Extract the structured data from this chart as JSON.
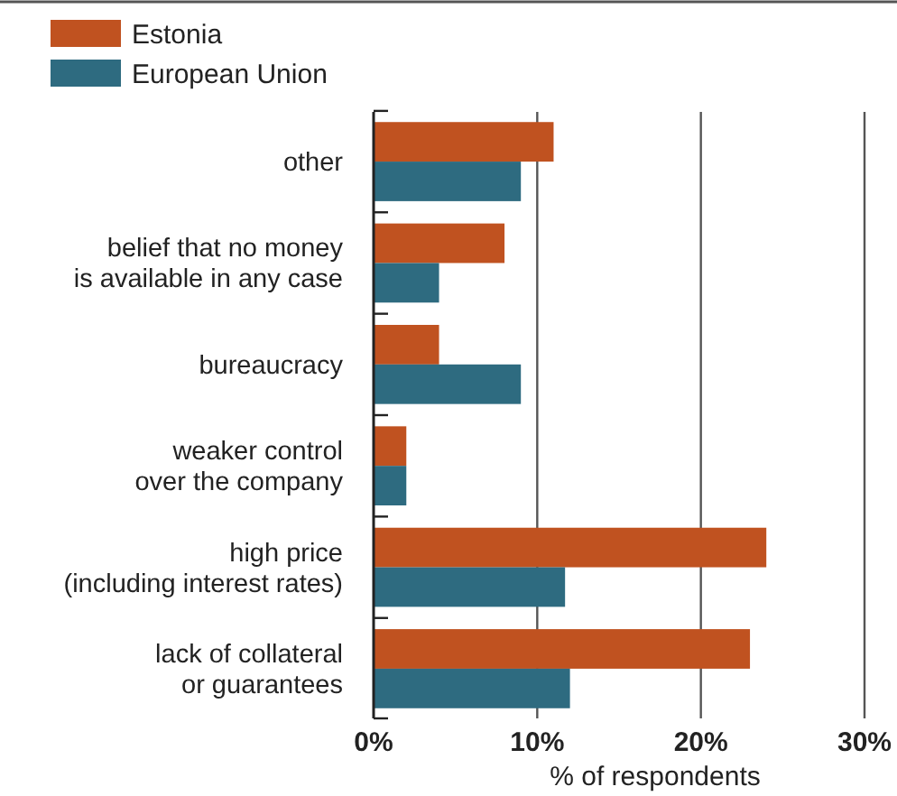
{
  "chart_data": {
    "type": "bar",
    "orientation": "horizontal",
    "xlabel": "% of respondents",
    "categories": [
      "other",
      "belief that no money\nis available in any case",
      "bureaucracy",
      "weaker control\nover the company",
      "high price\n(including interest rates)",
      "lack of collateral\nor guarantees"
    ],
    "series": [
      {
        "name": "Estonia",
        "color": "#c05220",
        "values": [
          11,
          8,
          4,
          2,
          24,
          23
        ]
      },
      {
        "name": "European Union",
        "color": "#2e6b80",
        "values": [
          9,
          4,
          9,
          2,
          11.7,
          12
        ]
      }
    ],
    "xlim": [
      0,
      30
    ],
    "xticks": [
      {
        "value": 0,
        "label": "0%"
      },
      {
        "value": 10,
        "label": "10%"
      },
      {
        "value": 20,
        "label": "20%"
      },
      {
        "value": 30,
        "label": "30%"
      }
    ],
    "grid": "x",
    "legend": "top left"
  }
}
